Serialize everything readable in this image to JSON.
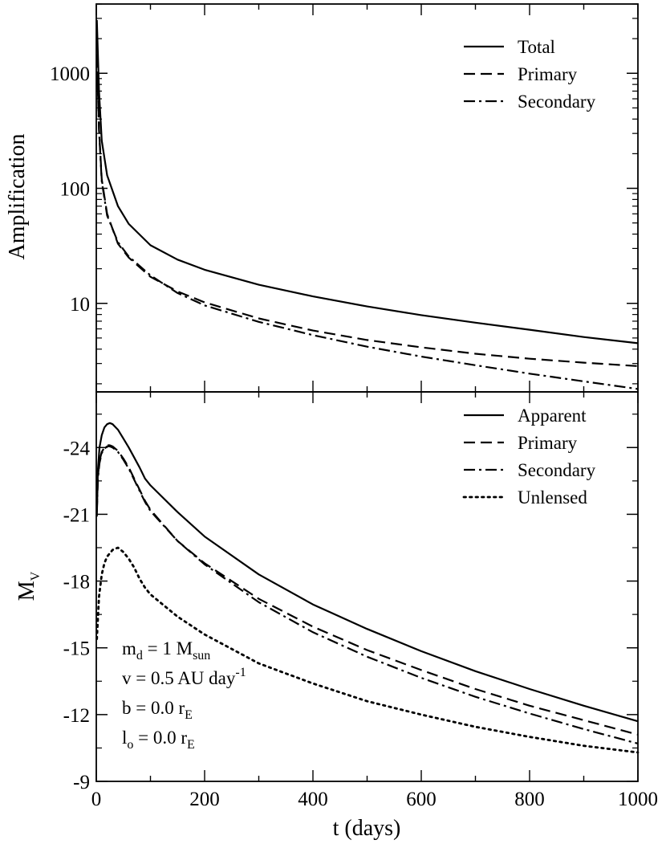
{
  "chart_data": [
    {
      "type": "line",
      "panel": "top",
      "yscale": "log",
      "ylabel": "Amplification",
      "xlim": [
        0,
        1000
      ],
      "ylim": [
        1.7,
        4000
      ],
      "yticks": [
        10,
        100,
        1000
      ],
      "ytick_labels": [
        "10",
        "100",
        "1000"
      ],
      "legend": {
        "placement": "top-right",
        "entries": [
          "Total",
          "Primary",
          "Secondary"
        ]
      },
      "series": [
        {
          "name": "Total",
          "style": "solid",
          "x": [
            1,
            5,
            10,
            20,
            40,
            60,
            100,
            150,
            200,
            300,
            400,
            500,
            600,
            700,
            800,
            900,
            1000
          ],
          "y": [
            2900,
            700,
            260,
            130,
            70,
            49,
            32,
            24,
            19.6,
            14.5,
            11.5,
            9.4,
            7.9,
            6.8,
            5.9,
            5.1,
            4.5
          ]
        },
        {
          "name": "Primary",
          "style": "dashed",
          "x": [
            1,
            5,
            10,
            20,
            40,
            60,
            100,
            150,
            200,
            300,
            400,
            500,
            600,
            700,
            800,
            900,
            1000
          ],
          "y": [
            1450,
            330,
            120,
            60,
            33,
            25,
            17,
            12.7,
            10.2,
            7.4,
            5.8,
            4.8,
            4.15,
            3.65,
            3.3,
            3.05,
            2.85
          ]
        },
        {
          "name": "Secondary",
          "style": "dashdot",
          "x": [
            1,
            5,
            10,
            20,
            40,
            60,
            100,
            150,
            200,
            300,
            400,
            500,
            600,
            700,
            800,
            900,
            1000
          ],
          "y": [
            1400,
            320,
            115,
            58,
            34,
            25.5,
            17.5,
            12.3,
            9.6,
            6.9,
            5.3,
            4.2,
            3.45,
            2.9,
            2.45,
            2.1,
            1.8
          ]
        }
      ]
    },
    {
      "type": "line",
      "panel": "bottom",
      "xlabel": "t (days)",
      "ylabel": {
        "main": "M",
        "sub": "V"
      },
      "xlim": [
        0,
        1000
      ],
      "ylim": [
        -9,
        -26.5
      ],
      "xticks": [
        0,
        200,
        400,
        600,
        800,
        1000
      ],
      "xtick_labels": [
        "0",
        "200",
        "400",
        "600",
        "800",
        "1000"
      ],
      "yticks": [
        -24,
        -21,
        -18,
        -15,
        -12,
        -9
      ],
      "ytick_labels": [
        "-24",
        "-21",
        "-18",
        "-15",
        "-12",
        "-9"
      ],
      "legend": {
        "placement": "top-right",
        "entries": [
          "Apparent",
          "Primary",
          "Secondary",
          "Unlensed"
        ]
      },
      "series": [
        {
          "name": "Apparent",
          "style": "solid",
          "x": [
            1,
            3,
            6,
            10,
            15,
            20,
            25,
            30,
            40,
            50,
            60,
            70,
            80,
            90,
            100,
            150,
            200,
            300,
            400,
            500,
            600,
            700,
            800,
            900,
            1000
          ],
          "y": [
            -20.9,
            -23.0,
            -24.0,
            -24.55,
            -24.9,
            -25.05,
            -25.1,
            -25.05,
            -24.8,
            -24.4,
            -24.0,
            -23.55,
            -23.1,
            -22.6,
            -22.3,
            -21.1,
            -20.0,
            -18.3,
            -16.95,
            -15.85,
            -14.85,
            -13.95,
            -13.15,
            -12.4,
            -11.7
          ]
        },
        {
          "name": "Primary",
          "style": "dashed",
          "x": [
            1,
            3,
            6,
            10,
            15,
            20,
            25,
            30,
            40,
            50,
            60,
            70,
            80,
            90,
            100,
            150,
            200,
            300,
            400,
            500,
            600,
            700,
            800,
            900,
            1000
          ],
          "y": [
            -21.2,
            -22.7,
            -23.4,
            -23.8,
            -24.0,
            -24.1,
            -24.1,
            -24.05,
            -23.85,
            -23.5,
            -23.1,
            -22.6,
            -22.1,
            -21.6,
            -21.2,
            -19.8,
            -18.8,
            -17.2,
            -15.95,
            -14.9,
            -14.0,
            -13.15,
            -12.4,
            -11.75,
            -11.1
          ]
        },
        {
          "name": "Secondary",
          "style": "dashdot",
          "x": [
            1,
            3,
            6,
            10,
            15,
            20,
            25,
            30,
            40,
            50,
            60,
            70,
            80,
            90,
            100,
            150,
            200,
            300,
            400,
            500,
            600,
            700,
            800,
            900,
            1000
          ],
          "y": [
            -21.1,
            -22.6,
            -23.3,
            -23.75,
            -23.95,
            -24.05,
            -24.05,
            -24.0,
            -23.8,
            -23.45,
            -23.05,
            -22.55,
            -22.05,
            -21.55,
            -21.15,
            -19.8,
            -18.75,
            -17.05,
            -15.7,
            -14.6,
            -13.65,
            -12.8,
            -12.05,
            -11.35,
            -10.7
          ]
        },
        {
          "name": "Unlensed",
          "style": "dotted",
          "x": [
            1,
            5,
            10,
            15,
            20,
            30,
            40,
            50,
            60,
            70,
            80,
            90,
            100,
            150,
            200,
            300,
            400,
            500,
            600,
            700,
            800,
            900,
            1000
          ],
          "y": [
            -15.4,
            -17.3,
            -18.3,
            -18.8,
            -19.1,
            -19.4,
            -19.5,
            -19.3,
            -19.0,
            -18.6,
            -18.1,
            -17.7,
            -17.4,
            -16.4,
            -15.6,
            -14.3,
            -13.4,
            -12.6,
            -12.0,
            -11.45,
            -11.0,
            -10.6,
            -10.3
          ]
        }
      ],
      "annotations": [
        {
          "main": "m",
          "sub1": "d",
          "mid": " = 1 M",
          "sub2": "sun"
        },
        {
          "main": "v = 0.5 AU day",
          "sup": "-1"
        },
        {
          "main": "b = 0.0 r",
          "sub": "E"
        },
        {
          "main": "l",
          "sub1": "o",
          "mid": " = 0.0 r",
          "sub2": "E"
        }
      ]
    }
  ]
}
